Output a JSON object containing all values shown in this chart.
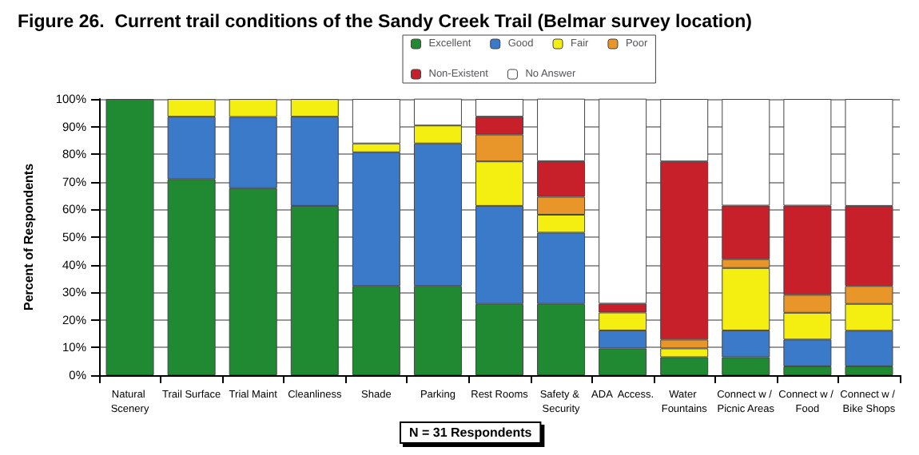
{
  "chart_data": {
    "type": "bar",
    "stacked": true,
    "title": "Figure 26.  Current trail conditions of the Sandy Creek Trail (Belmar survey location)",
    "ylabel": "Percent of Respondents",
    "annotations": [
      "N = 31 Respondents"
    ],
    "categories": [
      "Natural Scenery",
      "Trail Surface",
      "Trial Maint",
      "Cleanliness",
      "Shade",
      "Parking",
      "Rest Rooms",
      "Safety & Security",
      "ADA  Access.",
      "Water Fountains",
      "Connect w / Picnic Areas",
      "Connect w / Food",
      "Connect w / Bike Shops"
    ],
    "series": [
      {
        "name": "Excellent",
        "color": "#1f8a32",
        "values": [
          100,
          71,
          67.7,
          61.3,
          32.3,
          32.3,
          25.8,
          25.8,
          9.7,
          6.5,
          6.5,
          3.2,
          3.2
        ]
      },
      {
        "name": "Good",
        "color": "#3b79c9",
        "values": [
          null,
          22.6,
          25.8,
          32.3,
          48.4,
          51.6,
          35.5,
          25.8,
          6.5,
          null,
          9.7,
          9.7,
          12.9
        ]
      },
      {
        "name": "Fair",
        "color": "#f4ef10",
        "values": [
          null,
          6.4,
          6.5,
          6.4,
          3.2,
          6.5,
          16.1,
          6.5,
          6.5,
          3.2,
          22.6,
          9.7,
          9.7
        ]
      },
      {
        "name": "Poor",
        "color": "#e8962a",
        "values": [
          null,
          null,
          null,
          null,
          null,
          null,
          9.7,
          6.5,
          null,
          3.2,
          3.2,
          6.5,
          6.5
        ]
      },
      {
        "name": "Non-Existent",
        "color": "#c8202a",
        "values": [
          null,
          null,
          null,
          null,
          null,
          null,
          6.5,
          12.9,
          3.2,
          64.5,
          19.4,
          32.3,
          29
        ]
      },
      {
        "name": "No Answer",
        "color": "#ffffff",
        "values": [
          null,
          null,
          null,
          null,
          16.1,
          9.7,
          6.4,
          22.6,
          74.2,
          22.6,
          38.6,
          38.6,
          38.7
        ]
      }
    ],
    "ylim": [
      0,
      100
    ],
    "yticks": [
      {
        "value": 0,
        "label": "0%"
      },
      {
        "value": 10,
        "label": "10%"
      },
      {
        "value": 20,
        "label": "20%"
      },
      {
        "value": 30,
        "label": "30%"
      },
      {
        "value": 40,
        "label": "40%"
      },
      {
        "value": 50,
        "label": "50%"
      },
      {
        "value": 60,
        "label": "60%"
      },
      {
        "value": 70,
        "label": "70%"
      },
      {
        "value": 80,
        "label": "80%"
      },
      {
        "value": 90,
        "label": "90%"
      },
      {
        "value": 100,
        "label": "100%"
      }
    ],
    "grid": "y",
    "legend": "top"
  }
}
